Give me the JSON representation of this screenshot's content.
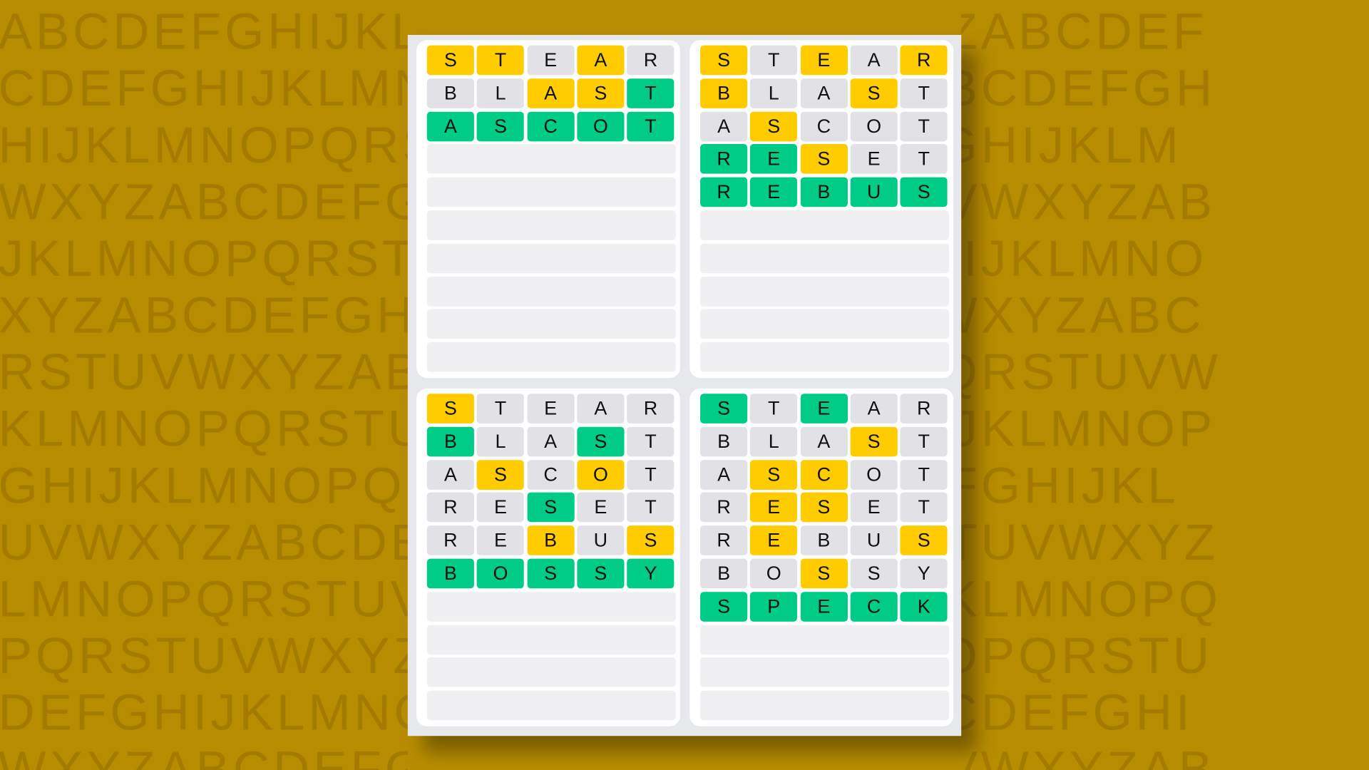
{
  "background_letter_rows": [
    "ABCDEFGHIJKLMNOPQRSTUVWXYZABCDEF",
    "CDEFGHIJKLMNOPQRSTUVWXYZABCDEFGH",
    "HIJKLMNOPQRSTUVWXYZABCDEFGHIJKLM",
    "WXYZABCDEFGHIJKLMNOPQRSTUVWXYZAB",
    "JKLMNOPQRSTUVWXYZABCDEFGHIJKLMNO",
    "XYZABCDEFGHIJKLMNOPQRSTUVWXYZABC",
    "RSTUVWXYZABCDEFGHIJKLMNOPQRSTUVW",
    "KLMNOPQRSTUVWXYZABCDEFGHIJKLMNOP",
    "GHIJKLMNOPQRSTUVWXYZABCDEFGHIJKL",
    "UVWXYZABCDEFGHIJKLMNOPQRSTUVWXYZ",
    "LMNOPQRSTUVWXYZABCDEFGHIJKLMNOPQ",
    "PQRSTUVWXYZABCDEFGHIJKLMNOPQRSTU",
    "DEFGHIJKLMNOPQRSTUVWXYZABCDEFGHI",
    "WXYZABCDEFGHIJKLMNOPQRSTUVWXYZAB"
  ],
  "colors": {
    "correct": "#00cc88",
    "present": "#ffcc00",
    "absent": "#e1e1e6",
    "empty": "#f0f0f3"
  },
  "total_rows": 10,
  "boards": [
    {
      "guesses": [
        {
          "word": "STEAR",
          "result": "YYNYN"
        },
        {
          "word": "BLAST",
          "result": "NNYYG"
        },
        {
          "word": "ASCOT",
          "result": "GGGGG"
        }
      ]
    },
    {
      "guesses": [
        {
          "word": "STEAR",
          "result": "YNYNY"
        },
        {
          "word": "BLAST",
          "result": "YNNYN"
        },
        {
          "word": "ASCOT",
          "result": "NYNNN"
        },
        {
          "word": "RESET",
          "result": "GGYNN"
        },
        {
          "word": "REBUS",
          "result": "GGGGG"
        }
      ]
    },
    {
      "guesses": [
        {
          "word": "STEAR",
          "result": "YNNNN"
        },
        {
          "word": "BLAST",
          "result": "GNNGN"
        },
        {
          "word": "ASCOT",
          "result": "NYNYN"
        },
        {
          "word": "RESET",
          "result": "NNGNN"
        },
        {
          "word": "REBUS",
          "result": "NNYNY"
        },
        {
          "word": "BOSSY",
          "result": "GGGGG"
        }
      ]
    },
    {
      "guesses": [
        {
          "word": "STEAR",
          "result": "GNGNN"
        },
        {
          "word": "BLAST",
          "result": "NNNYN"
        },
        {
          "word": "ASCOT",
          "result": "NYYNN"
        },
        {
          "word": "RESET",
          "result": "NYYNN"
        },
        {
          "word": "REBUS",
          "result": "NYNNY"
        },
        {
          "word": "BOSSY",
          "result": "NNYNN"
        },
        {
          "word": "SPECK",
          "result": "GGGGG"
        }
      ]
    }
  ]
}
